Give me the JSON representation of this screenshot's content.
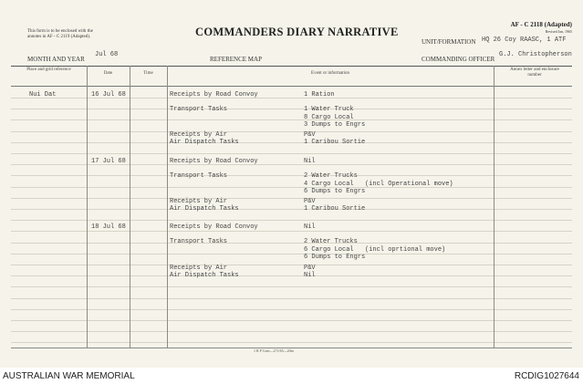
{
  "form": {
    "note": "This form is to be enclosed with the annotes in AF - C 2119 (Adapted).",
    "title": "COMMANDERS DIARY NARRATIVE",
    "form_number": "AF - C 2118 (Adapted)",
    "revised": "Revised Jan, 1965",
    "unit_label": "UNIT/FORMATION",
    "unit_value": "HQ 26 Coy RAASC, 1 ATF",
    "month_label": "MONTH AND YEAR",
    "month_value": "Jul 68",
    "map_label": "REFERENCE MAP",
    "co_label": "COMMANDING OFFICER",
    "co_value": "G.J. Christopherson",
    "printer": "1 R P Com—271/65—20m"
  },
  "columns": [
    "Place and grid reference",
    "Date",
    "Time",
    "Event or information",
    "Annex letter and enclosure number"
  ],
  "entries": [
    {
      "place": "Nui Dat",
      "date": "16 Jul 68",
      "items": [
        {
          "event": "Receipts by Road Convoy",
          "info": [
            "1 Ration"
          ]
        },
        {
          "event": "Transport Tasks",
          "info": [
            "1 Water Truck",
            "8 Cargo Local",
            "3 Dumps to Engrs"
          ]
        },
        {
          "event": "Receipts by Air",
          "info": [
            "P&V"
          ]
        },
        {
          "event": "Air Dispatch Tasks",
          "info": [
            "1 Caribou Sortie"
          ]
        }
      ]
    },
    {
      "place": "",
      "date": "17 Jul 68",
      "items": [
        {
          "event": "Receipts by Road Convoy",
          "info": [
            "Nil"
          ]
        },
        {
          "event": "Transport Tasks",
          "info": [
            "2 Water Trucks",
            "4 Cargo Local",
            "6 Dumps to Engrs"
          ],
          "note": "(incl Operational move)"
        },
        {
          "event": "Receipts by Air",
          "info": [
            "P&V"
          ]
        },
        {
          "event": "Air Dispatch Tasks",
          "info": [
            "1 Caribou Sortie"
          ]
        }
      ]
    },
    {
      "place": "",
      "date": "18 Jul 68",
      "items": [
        {
          "event": "Receipts by Road Convoy",
          "info": [
            "Nil"
          ]
        },
        {
          "event": "Transport Tasks",
          "info": [
            "2 Water Trucks",
            "6 Cargo Local",
            "6 Dumps to Engrs"
          ],
          "note": "(incl oprtional move)"
        },
        {
          "event": "Receipts by Air",
          "info": [
            "P&V"
          ]
        },
        {
          "event": "Air Dispatch Tasks",
          "info": [
            "Nil"
          ]
        }
      ]
    }
  ],
  "footer": {
    "left": "AUSTRALIAN WAR MEMORIAL",
    "right": "RCDIG1027644"
  }
}
